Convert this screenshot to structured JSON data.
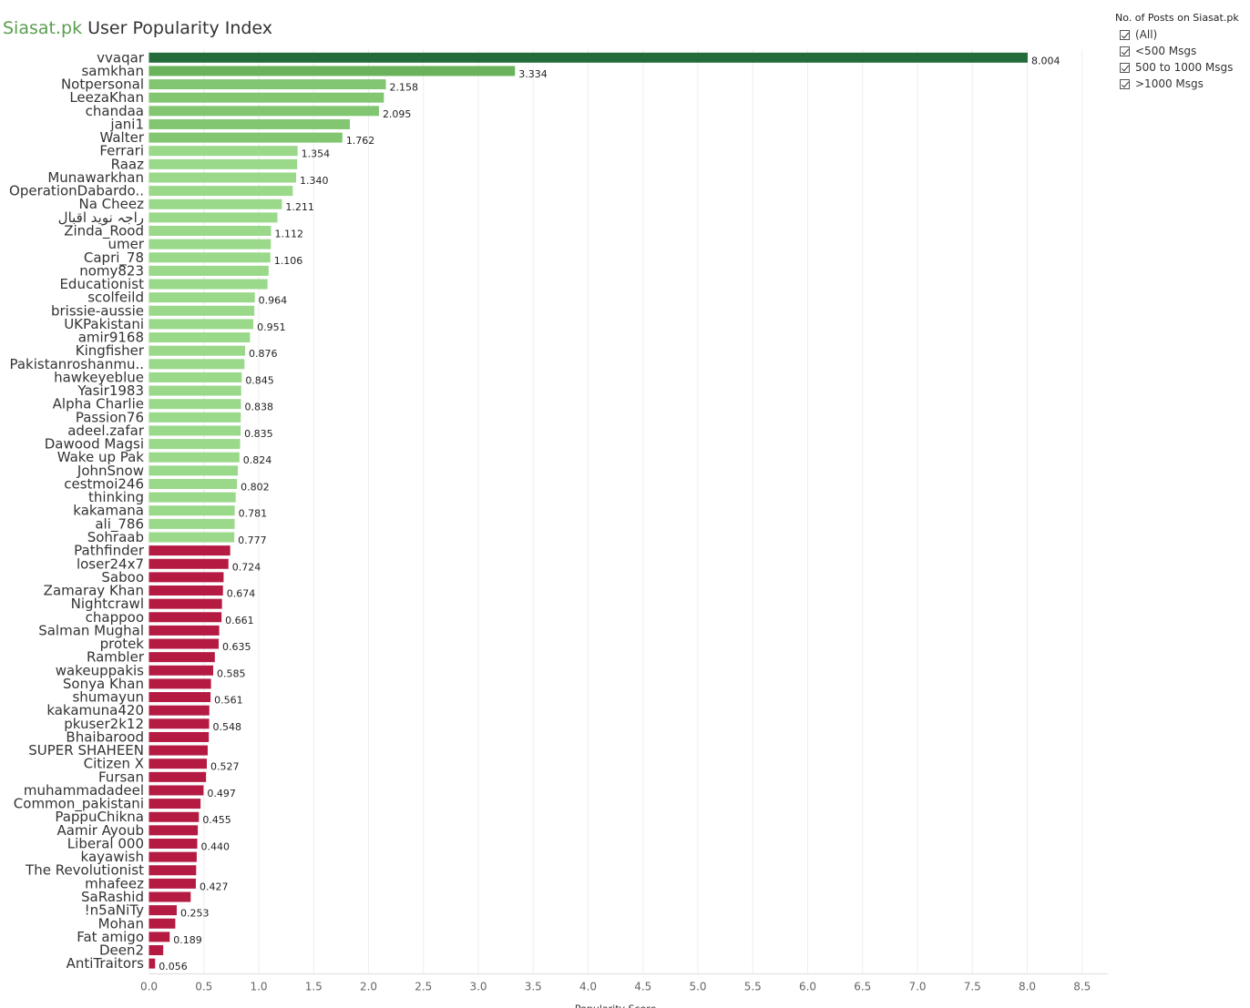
{
  "title": {
    "brand": "Siasat.pk",
    "rest": "User Popularity Index"
  },
  "legend": {
    "title": "No. of Posts on Siasat.pk",
    "items": [
      {
        "label": "(All)",
        "checked": true
      },
      {
        "label": "<500 Msgs",
        "checked": true
      },
      {
        "label": "500 to 1000 Msgs",
        "checked": true
      },
      {
        "label": ">1000 Msgs",
        "checked": true
      }
    ]
  },
  "colors": {
    "darkest_green": "#236b3a",
    "dark_green": "#6ab35c",
    "medium_green": "#82c672",
    "light_green": "#9ad88a",
    "red": "#b51a42",
    "grid": "#eeeeee"
  },
  "chart_data": {
    "type": "bar",
    "orientation": "horizontal",
    "xlabel": "Popularity Score",
    "xlim": [
      0,
      8.5
    ],
    "xticks": [
      0.0,
      0.5,
      1.0,
      1.5,
      2.0,
      2.5,
      3.0,
      3.5,
      4.0,
      4.5,
      5.0,
      5.5,
      6.0,
      6.5,
      7.0,
      7.5,
      8.0,
      8.5
    ],
    "grid": true,
    "bars": [
      {
        "category": "vvaqar",
        "value": 8.004,
        "label": "8.004",
        "color": "#236b3a"
      },
      {
        "category": "samkhan",
        "value": 3.334,
        "label": "3.334",
        "color": "#6ab35c"
      },
      {
        "category": "Notpersonal",
        "value": 2.158,
        "label": "2.158",
        "color": "#82c672"
      },
      {
        "category": "LeezaKhan",
        "value": 2.14,
        "label": "",
        "color": "#82c672"
      },
      {
        "category": "chandaa",
        "value": 2.095,
        "label": "2.095",
        "color": "#82c672"
      },
      {
        "category": "jani1",
        "value": 1.83,
        "label": "",
        "color": "#82c672"
      },
      {
        "category": "Walter",
        "value": 1.762,
        "label": "1.762",
        "color": "#82c672"
      },
      {
        "category": "Ferrari",
        "value": 1.354,
        "label": "1.354",
        "color": "#9ad88a"
      },
      {
        "category": "Raaz",
        "value": 1.35,
        "label": "",
        "color": "#9ad88a"
      },
      {
        "category": "Munawarkhan",
        "value": 1.34,
        "label": "1.340",
        "color": "#9ad88a"
      },
      {
        "category": "OperationDabardo..",
        "value": 1.31,
        "label": "",
        "color": "#9ad88a"
      },
      {
        "category": "Na Cheez",
        "value": 1.211,
        "label": "1.211",
        "color": "#9ad88a"
      },
      {
        "category": "راجہ نوید اقبال",
        "value": 1.17,
        "label": "",
        "color": "#9ad88a"
      },
      {
        "category": "Zinda_Rood",
        "value": 1.112,
        "label": "1.112",
        "color": "#9ad88a"
      },
      {
        "category": "umer",
        "value": 1.11,
        "label": "",
        "color": "#9ad88a"
      },
      {
        "category": "Capri_78",
        "value": 1.106,
        "label": "1.106",
        "color": "#9ad88a"
      },
      {
        "category": "nomy823",
        "value": 1.09,
        "label": "",
        "color": "#9ad88a"
      },
      {
        "category": "Educationist",
        "value": 1.08,
        "label": "",
        "color": "#9ad88a"
      },
      {
        "category": "scolfeild",
        "value": 0.964,
        "label": "0.964",
        "color": "#9ad88a"
      },
      {
        "category": "brissie-aussie",
        "value": 0.96,
        "label": "",
        "color": "#9ad88a"
      },
      {
        "category": "UKPakistani",
        "value": 0.951,
        "label": "0.951",
        "color": "#9ad88a"
      },
      {
        "category": "amir9168",
        "value": 0.92,
        "label": "",
        "color": "#9ad88a"
      },
      {
        "category": "Kingfisher",
        "value": 0.876,
        "label": "0.876",
        "color": "#9ad88a"
      },
      {
        "category": "Pakistanroshanmu..",
        "value": 0.87,
        "label": "",
        "color": "#9ad88a"
      },
      {
        "category": "hawkeyeblue",
        "value": 0.845,
        "label": "0.845",
        "color": "#9ad88a"
      },
      {
        "category": "Yasir1983",
        "value": 0.84,
        "label": "",
        "color": "#9ad88a"
      },
      {
        "category": "Alpha Charlie",
        "value": 0.838,
        "label": "0.838",
        "color": "#9ad88a"
      },
      {
        "category": "Passion76",
        "value": 0.836,
        "label": "",
        "color": "#9ad88a"
      },
      {
        "category": "adeel.zafar",
        "value": 0.835,
        "label": "0.835",
        "color": "#9ad88a"
      },
      {
        "category": "Dawood Magsi",
        "value": 0.83,
        "label": "",
        "color": "#9ad88a"
      },
      {
        "category": "Wake up Pak",
        "value": 0.824,
        "label": "0.824",
        "color": "#9ad88a"
      },
      {
        "category": "JohnSnow",
        "value": 0.81,
        "label": "",
        "color": "#9ad88a"
      },
      {
        "category": "cestmoi246",
        "value": 0.802,
        "label": "0.802",
        "color": "#9ad88a"
      },
      {
        "category": "thinking",
        "value": 0.79,
        "label": "",
        "color": "#9ad88a"
      },
      {
        "category": "kakamana",
        "value": 0.781,
        "label": "0.781",
        "color": "#9ad88a"
      },
      {
        "category": "ali_786",
        "value": 0.78,
        "label": "",
        "color": "#9ad88a"
      },
      {
        "category": "Sohraab",
        "value": 0.777,
        "label": "0.777",
        "color": "#9ad88a"
      },
      {
        "category": "Pathfinder",
        "value": 0.74,
        "label": "",
        "color": "#b51a42"
      },
      {
        "category": "loser24x7",
        "value": 0.724,
        "label": "0.724",
        "color": "#b51a42"
      },
      {
        "category": "Saboo",
        "value": 0.68,
        "label": "",
        "color": "#b51a42"
      },
      {
        "category": "Zamaray Khan",
        "value": 0.674,
        "label": "0.674",
        "color": "#b51a42"
      },
      {
        "category": "Nightcrawl",
        "value": 0.665,
        "label": "",
        "color": "#b51a42"
      },
      {
        "category": "chappoo",
        "value": 0.661,
        "label": "0.661",
        "color": "#b51a42"
      },
      {
        "category": "Salman Mughal",
        "value": 0.64,
        "label": "",
        "color": "#b51a42"
      },
      {
        "category": "protek",
        "value": 0.635,
        "label": "0.635",
        "color": "#b51a42"
      },
      {
        "category": "Rambler",
        "value": 0.6,
        "label": "",
        "color": "#b51a42"
      },
      {
        "category": "wakeuppakis",
        "value": 0.585,
        "label": "0.585",
        "color": "#b51a42"
      },
      {
        "category": "Sonya Khan",
        "value": 0.565,
        "label": "",
        "color": "#b51a42"
      },
      {
        "category": "shumayun",
        "value": 0.561,
        "label": "0.561",
        "color": "#b51a42"
      },
      {
        "category": "kakamuna420",
        "value": 0.55,
        "label": "",
        "color": "#b51a42"
      },
      {
        "category": "pkuser2k12",
        "value": 0.548,
        "label": "0.548",
        "color": "#b51a42"
      },
      {
        "category": "Bhaibarood",
        "value": 0.545,
        "label": "",
        "color": "#b51a42"
      },
      {
        "category": "SUPER SHAHEEN",
        "value": 0.535,
        "label": "",
        "color": "#b51a42"
      },
      {
        "category": "Citizen X",
        "value": 0.527,
        "label": "0.527",
        "color": "#b51a42"
      },
      {
        "category": "Fursan",
        "value": 0.52,
        "label": "",
        "color": "#b51a42"
      },
      {
        "category": "muhammadadeel",
        "value": 0.497,
        "label": "0.497",
        "color": "#b51a42"
      },
      {
        "category": "Common_pakistani",
        "value": 0.47,
        "label": "",
        "color": "#b51a42"
      },
      {
        "category": "PappuChikna",
        "value": 0.455,
        "label": "0.455",
        "color": "#b51a42"
      },
      {
        "category": "Aamir Ayoub",
        "value": 0.445,
        "label": "",
        "color": "#b51a42"
      },
      {
        "category": "Liberal 000",
        "value": 0.44,
        "label": "0.440",
        "color": "#b51a42"
      },
      {
        "category": "kayawish",
        "value": 0.435,
        "label": "",
        "color": "#b51a42"
      },
      {
        "category": "The Revolutionist",
        "value": 0.43,
        "label": "",
        "color": "#b51a42"
      },
      {
        "category": "mhafeez",
        "value": 0.427,
        "label": "0.427",
        "color": "#b51a42"
      },
      {
        "category": "SaRashid",
        "value": 0.38,
        "label": "",
        "color": "#b51a42"
      },
      {
        "category": "!n5aNiTy",
        "value": 0.253,
        "label": "0.253",
        "color": "#b51a42"
      },
      {
        "category": "Mohan",
        "value": 0.24,
        "label": "",
        "color": "#b51a42"
      },
      {
        "category": "Fat amigo",
        "value": 0.189,
        "label": "0.189",
        "color": "#b51a42"
      },
      {
        "category": "Deen2",
        "value": 0.13,
        "label": "",
        "color": "#b51a42"
      },
      {
        "category": "AntiTraitors",
        "value": 0.056,
        "label": "0.056",
        "color": "#b51a42"
      }
    ]
  }
}
